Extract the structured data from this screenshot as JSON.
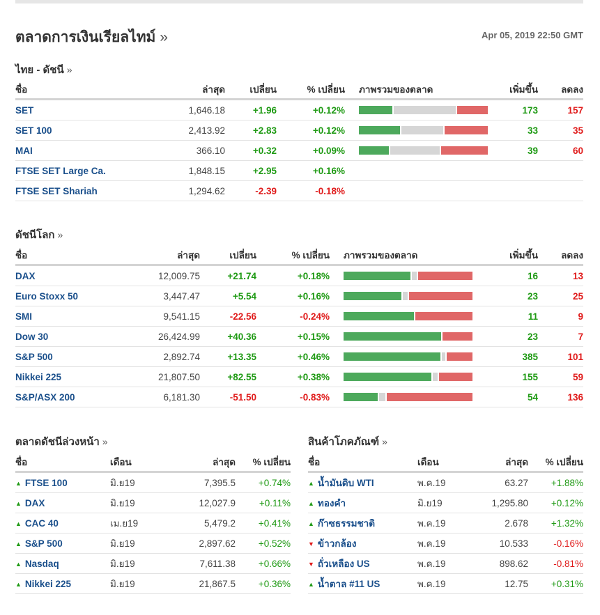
{
  "header": {
    "title": "ตลาดการเงินเรียลไทม์",
    "raquo": "»",
    "timestamp": "Apr 05, 2019 22:50 GMT"
  },
  "colors": {
    "up": "#1f9a14",
    "down": "#e01b1b",
    "link": "#1a4f8b",
    "bar_advance": "#4da95c",
    "bar_unchanged": "#d6d6d6",
    "bar_decline": "#e06767"
  },
  "thai": {
    "title": "ไทย - ดัชนี",
    "raquo": "»",
    "headers": {
      "name": "ชื่อ",
      "last": "ล่าสุด",
      "change": "เปลี่ยน",
      "pct": "% เปลี่ยน",
      "overview": "ภาพรวมของตลาด",
      "adv": "เพิ่มขึ้น",
      "dec": "ลดลง"
    },
    "rows": [
      {
        "name": "SET",
        "last": "1,646.18",
        "change": "+1.96",
        "pct": "+0.12%",
        "dir": "up",
        "adv": "173",
        "dec": "157",
        "unch": 0.49
      },
      {
        "name": "SET 100",
        "last": "2,413.92",
        "change": "+2.83",
        "pct": "+0.12%",
        "dir": "up",
        "adv": "33",
        "dec": "35",
        "unch": 0.33
      },
      {
        "name": "MAI",
        "last": "366.10",
        "change": "+0.32",
        "pct": "+0.09%",
        "dir": "up",
        "adv": "39",
        "dec": "60",
        "unch": 0.39
      },
      {
        "name": "FTSE SET Large Ca.",
        "last": "1,848.15",
        "change": "+2.95",
        "pct": "+0.16%",
        "dir": "up",
        "adv": "",
        "dec": ""
      },
      {
        "name": "FTSE SET Shariah",
        "last": "1,294.62",
        "change": "-2.39",
        "pct": "-0.18%",
        "dir": "down",
        "adv": "",
        "dec": ""
      }
    ]
  },
  "world": {
    "title": "ดัชนีโลก",
    "raquo": "»",
    "headers": {
      "name": "ชื่อ",
      "last": "ล่าสุด",
      "change": "เปลี่ยน",
      "pct": "% เปลี่ยน",
      "overview": "ภาพรวมของตลาด",
      "adv": "เพิ่มขึ้น",
      "dec": "ลดลง"
    },
    "rows": [
      {
        "name": "DAX",
        "last": "12,009.75",
        "change": "+21.74",
        "pct": "+0.18%",
        "dir": "up",
        "adv": "16",
        "dec": "13",
        "unch": 0.04
      },
      {
        "name": "Euro Stoxx 50",
        "last": "3,447.47",
        "change": "+5.54",
        "pct": "+0.16%",
        "dir": "up",
        "adv": "23",
        "dec": "25",
        "unch": 0.04
      },
      {
        "name": "SMI",
        "last": "9,541.15",
        "change": "-22.56",
        "pct": "-0.24%",
        "dir": "down",
        "adv": "11",
        "dec": "9",
        "unch": 0.0
      },
      {
        "name": "Dow 30",
        "last": "26,424.99",
        "change": "+40.36",
        "pct": "+0.15%",
        "dir": "up",
        "adv": "23",
        "dec": "7",
        "unch": 0.0
      },
      {
        "name": "S&P 500",
        "last": "2,892.74",
        "change": "+13.35",
        "pct": "+0.46%",
        "dir": "up",
        "adv": "385",
        "dec": "101",
        "unch": 0.03
      },
      {
        "name": "Nikkei 225",
        "last": "21,807.50",
        "change": "+82.55",
        "pct": "+0.38%",
        "dir": "up",
        "adv": "155",
        "dec": "59",
        "unch": 0.04
      },
      {
        "name": "S&P/ASX 200",
        "last": "6,181.30",
        "change": "-51.50",
        "pct": "-0.83%",
        "dir": "down",
        "adv": "54",
        "dec": "136",
        "unch": 0.05
      }
    ]
  },
  "futures": {
    "title": "ตลาดดัชนีล่วงหน้า",
    "raquo": "»",
    "headers": {
      "name": "ชื่อ",
      "month": "เดือน",
      "last": "ล่าสุด",
      "pct": "% เปลี่ยน"
    },
    "rows": [
      {
        "name": "FTSE 100",
        "month": "มิ.ย19",
        "last": "7,395.5",
        "pct": "+0.74%",
        "dir": "up"
      },
      {
        "name": "DAX",
        "month": "มิ.ย19",
        "last": "12,027.9",
        "pct": "+0.11%",
        "dir": "up"
      },
      {
        "name": "CAC 40",
        "month": "เม.ย19",
        "last": "5,479.2",
        "pct": "+0.41%",
        "dir": "up"
      },
      {
        "name": "S&P 500",
        "month": "มิ.ย19",
        "last": "2,897.62",
        "pct": "+0.52%",
        "dir": "up"
      },
      {
        "name": "Nasdaq",
        "month": "มิ.ย19",
        "last": "7,611.38",
        "pct": "+0.66%",
        "dir": "up"
      },
      {
        "name": "Nikkei 225",
        "month": "มิ.ย19",
        "last": "21,867.5",
        "pct": "+0.36%",
        "dir": "up"
      }
    ]
  },
  "commodities": {
    "title": "สินค้าโภคภัณฑ์",
    "raquo": "»",
    "headers": {
      "name": "ชื่อ",
      "month": "เดือน",
      "last": "ล่าสุด",
      "pct": "% เปลี่ยน"
    },
    "rows": [
      {
        "name": "น้ำมันดิบ WTI",
        "month": "พ.ค.19",
        "last": "63.27",
        "pct": "+1.88%",
        "dir": "up"
      },
      {
        "name": "ทองคำ",
        "month": "มิ.ย19",
        "last": "1,295.80",
        "pct": "+0.12%",
        "dir": "up"
      },
      {
        "name": "ก๊าซธรรมชาติ",
        "month": "พ.ค.19",
        "last": "2.678",
        "pct": "+1.32%",
        "dir": "up"
      },
      {
        "name": "ข้าวกล้อง",
        "month": "พ.ค.19",
        "last": "10.533",
        "pct": "-0.16%",
        "dir": "down"
      },
      {
        "name": "ถั่วเหลือง US",
        "month": "พ.ค.19",
        "last": "898.62",
        "pct": "-0.81%",
        "dir": "down"
      },
      {
        "name": "น้ำตาล #11 US",
        "month": "พ.ค.19",
        "last": "12.75",
        "pct": "+0.31%",
        "dir": "up"
      }
    ]
  }
}
